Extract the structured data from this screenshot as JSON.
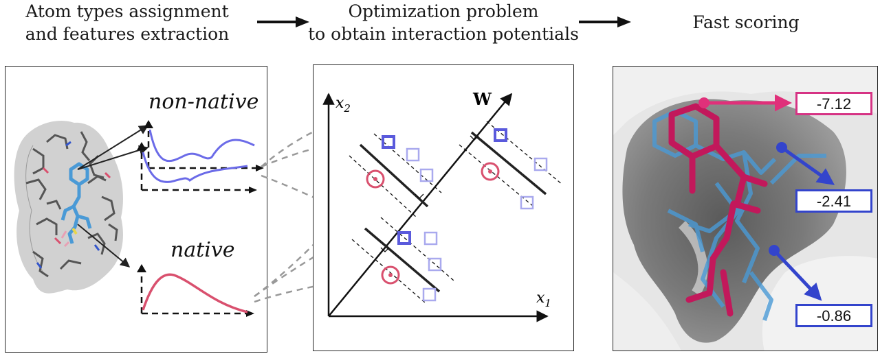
{
  "steps": [
    {
      "line1": "Atom types assignment",
      "line2": "and features extraction"
    },
    {
      "line1": "Optimization problem",
      "line2": "to obtain interaction potentials"
    },
    {
      "line1": "Fast scoring",
      "line2": ""
    }
  ],
  "panel1": {
    "nonnative_label": "non-native",
    "native_label": "native"
  },
  "panel2": {
    "w_label": "W",
    "x1_label": "x",
    "x1_sub": "1",
    "x2_label": "x",
    "x2_sub": "2"
  },
  "panel3": {
    "scores": [
      {
        "value": "-7.12",
        "color": "#d63384"
      },
      {
        "value": "-2.41",
        "color": "#3344cc"
      },
      {
        "value": "-0.86",
        "color": "#3344cc"
      }
    ]
  },
  "colors": {
    "nonnative_curve": "#6b6be8",
    "native_curve": "#d9506e",
    "ligand_magenta": "#c2185b",
    "ligand_blue": "#4a9ad6"
  }
}
